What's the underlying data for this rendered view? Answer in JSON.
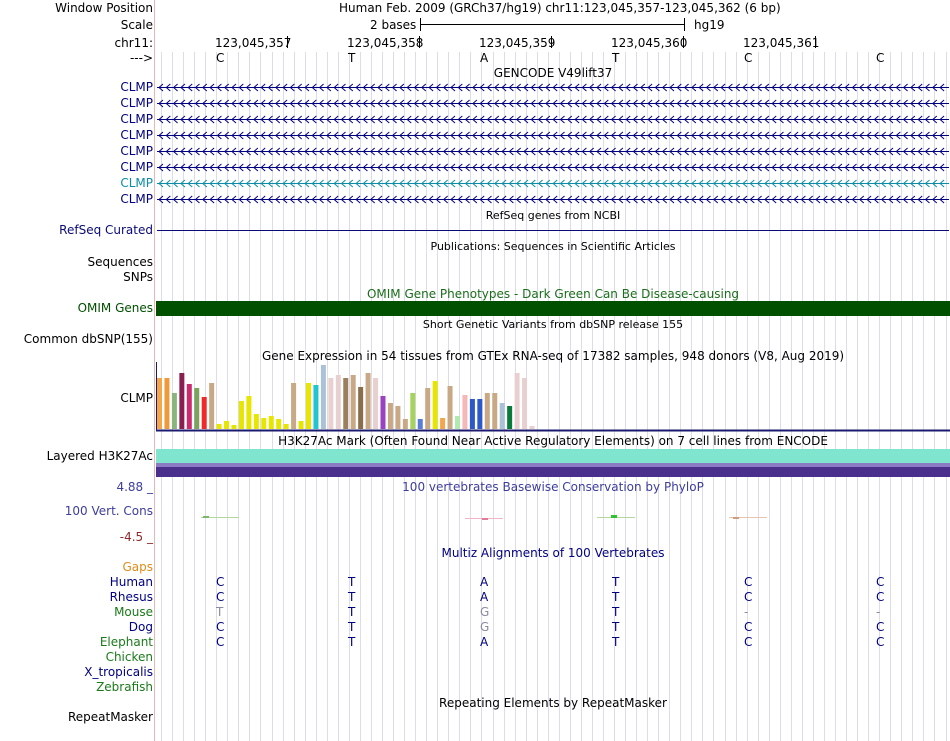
{
  "header": {
    "window_position_label": "Window Position",
    "window_position_text": "Human Feb. 2009 (GRCh37/hg19)   chr11:123,045,357-123,045,362 (6 bp)",
    "scale_label": "Scale",
    "scale_text": "2 bases",
    "scale_assembly": "hg19",
    "chrom_label": "chr11:",
    "strand_label": "--->",
    "positions": [
      "123,045,357",
      "123,045,358",
      "123,045,359",
      "123,045,360",
      "123,045,361"
    ],
    "bases": [
      "C",
      "T",
      "A",
      "T",
      "C",
      "C"
    ]
  },
  "gencode": {
    "title": "GENCODE V49lift37",
    "genes": [
      {
        "label": "CLMP",
        "color": "#000080"
      },
      {
        "label": "CLMP",
        "color": "#000080"
      },
      {
        "label": "CLMP",
        "color": "#000080"
      },
      {
        "label": "CLMP",
        "color": "#000080"
      },
      {
        "label": "CLMP",
        "color": "#000080"
      },
      {
        "label": "CLMP",
        "color": "#000080"
      },
      {
        "label": "CLMP",
        "color": "#0c8ca8"
      },
      {
        "label": "CLMP",
        "color": "#000080"
      }
    ]
  },
  "refseq": {
    "title": "RefSeq genes from NCBI",
    "label": "RefSeq Curated",
    "color": "#0a0a78"
  },
  "publications": {
    "title": "Publications: Sequences in Scientific Articles",
    "sequences_label": "Sequences",
    "snps_label": "SNPs"
  },
  "omim": {
    "title": "OMIM Gene Phenotypes - Dark Green Can Be Disease-causing",
    "label": "OMIM Genes",
    "color": "#005000"
  },
  "dbsnp": {
    "title": "Short Genetic Variants from dbSNP release 155",
    "label": "Common dbSNP(155)"
  },
  "gtex": {
    "title": "Gene Expression in 54 tissues from GTEx RNA-seq of 17382 samples, 948 donors (V8, Aug 2019)",
    "label": "CLMP",
    "bars": [
      {
        "v": 0.77,
        "c": "#f5a54a"
      },
      {
        "v": 0.77,
        "c": "#ee9a3c"
      },
      {
        "v": 0.55,
        "c": "#8bb47f"
      },
      {
        "v": 0.85,
        "c": "#8a1f4f"
      },
      {
        "v": 0.68,
        "c": "#cc2b6b"
      },
      {
        "v": 0.62,
        "c": "#7aa35e"
      },
      {
        "v": 0.48,
        "c": "#f02a2a"
      },
      {
        "v": 0.7,
        "c": "#c9a985"
      },
      {
        "v": 0.08,
        "c": "#e6e600"
      },
      {
        "v": 0.12,
        "c": "#e6e600"
      },
      {
        "v": 0.06,
        "c": "#e6e600"
      },
      {
        "v": 0.43,
        "c": "#e6e600"
      },
      {
        "v": 0.5,
        "c": "#e6e600"
      },
      {
        "v": 0.22,
        "c": "#e6e600"
      },
      {
        "v": 0.16,
        "c": "#e6e600"
      },
      {
        "v": 0.2,
        "c": "#e6e600"
      },
      {
        "v": 0.15,
        "c": "#e6e600"
      },
      {
        "v": 0.08,
        "c": "#e6e600"
      },
      {
        "v": 0.7,
        "c": "#c9a985"
      },
      {
        "v": 0.12,
        "c": "#e6e600"
      },
      {
        "v": 0.7,
        "c": "#e6e600"
      },
      {
        "v": 0.67,
        "c": "#1fc6cf"
      },
      {
        "v": 0.97,
        "c": "#aac1d6"
      },
      {
        "v": 0.78,
        "c": "#e8d0d0"
      },
      {
        "v": 0.82,
        "c": "#e8d0d0"
      },
      {
        "v": 0.78,
        "c": "#9c7f5c"
      },
      {
        "v": 0.82,
        "c": "#c9a985"
      },
      {
        "v": 0.63,
        "c": "#8a6e4b"
      },
      {
        "v": 0.85,
        "c": "#c9a985"
      },
      {
        "v": 0.77,
        "c": "#e8d0d0"
      },
      {
        "v": 0.5,
        "c": "#9b42c1"
      },
      {
        "v": 0.4,
        "c": "#c9a985"
      },
      {
        "v": 0.35,
        "c": "#c9a985"
      },
      {
        "v": 0.15,
        "c": "#c9a985"
      },
      {
        "v": 0.55,
        "c": "#a6d35e"
      },
      {
        "v": 0.15,
        "c": "#5a7bd6"
      },
      {
        "v": 0.62,
        "c": "#c9a985"
      },
      {
        "v": 0.72,
        "c": "#e6e600"
      },
      {
        "v": 0.17,
        "c": "#f5a54a"
      },
      {
        "v": 0.65,
        "c": "#c9a985"
      },
      {
        "v": 0.2,
        "c": "#b0eab0"
      },
      {
        "v": 0.52,
        "c": "#f5b8b8"
      },
      {
        "v": 0.45,
        "c": "#2d58c9"
      },
      {
        "v": 0.45,
        "c": "#2d58c9"
      },
      {
        "v": 0.55,
        "c": "#c9a985"
      },
      {
        "v": 0.55,
        "c": "#c9a985"
      },
      {
        "v": 0.4,
        "c": "#aac1d6"
      },
      {
        "v": 0.35,
        "c": "#0a7a3a"
      },
      {
        "v": 0.85,
        "c": "#e8d0d0"
      },
      {
        "v": 0.78,
        "c": "#e8d0d0"
      },
      {
        "v": 0.05,
        "c": "#e8d0d0"
      }
    ]
  },
  "h3k27ac": {
    "title": "H3K27Ac Mark (Often Found Near Active Regulatory Elements) on 7 cell lines from ENCODE",
    "label": "Layered H3K27Ac"
  },
  "phylop": {
    "title": "100 vertebrates Basewise Conservation by PhyloP",
    "label": "100 Vert. Cons",
    "max": "4.88 _",
    "min": "-4.5 _"
  },
  "multiz": {
    "title": "Multiz Alignments of 100 Vertebrates",
    "gaps_label": "Gaps",
    "species": [
      {
        "name": "Human",
        "color": "#000080",
        "bases": [
          "C",
          "T",
          "A",
          "T",
          "C",
          "C"
        ],
        "gray": [
          false,
          false,
          false,
          false,
          false,
          false
        ]
      },
      {
        "name": "Rhesus",
        "color": "#000080",
        "bases": [
          "C",
          "T",
          "A",
          "T",
          "C",
          "C"
        ],
        "gray": [
          false,
          false,
          false,
          false,
          false,
          false
        ]
      },
      {
        "name": "Mouse",
        "color": "#1a7a1a",
        "bases": [
          "T",
          "T",
          "G",
          "T",
          "-",
          "-"
        ],
        "gray": [
          true,
          false,
          true,
          false,
          true,
          true
        ]
      },
      {
        "name": "Dog",
        "color": "#000080",
        "bases": [
          "C",
          "T",
          "G",
          "T",
          "C",
          "C"
        ],
        "gray": [
          false,
          false,
          true,
          false,
          false,
          false
        ]
      },
      {
        "name": "Elephant",
        "color": "#1a7a1a",
        "bases": [
          "C",
          "T",
          "A",
          "T",
          "C",
          "C"
        ],
        "gray": [
          false,
          false,
          false,
          false,
          false,
          false
        ]
      },
      {
        "name": "Chicken",
        "color": "#1a7a1a",
        "bases": [
          "",
          "",
          "",
          "",
          "",
          ""
        ],
        "gray": [
          false,
          false,
          false,
          false,
          false,
          false
        ]
      },
      {
        "name": "X_tropicalis",
        "color": "#000080",
        "bases": [
          "",
          "",
          "",
          "",
          "",
          ""
        ],
        "gray": [
          false,
          false,
          false,
          false,
          false,
          false
        ]
      },
      {
        "name": "Zebrafish",
        "color": "#1a7a1a",
        "bases": [
          "",
          "",
          "",
          "",
          "",
          ""
        ],
        "gray": [
          false,
          false,
          false,
          false,
          false,
          false
        ]
      }
    ]
  },
  "repeatmasker": {
    "title": "Repeating Elements by RepeatMasker",
    "label": "RepeatMasker"
  }
}
